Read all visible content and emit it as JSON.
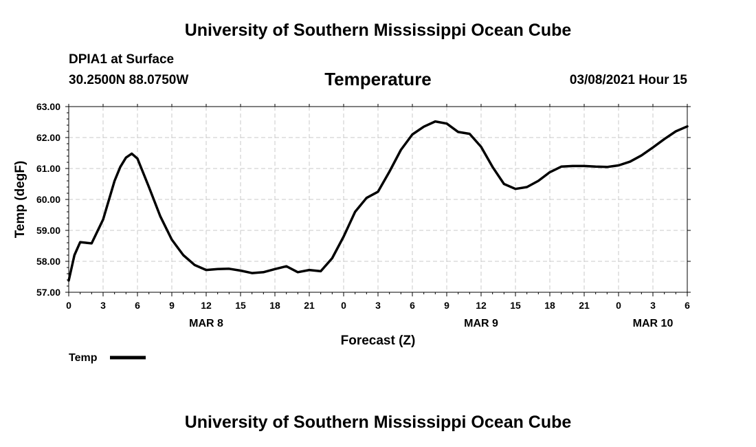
{
  "header": {
    "title": "University of Southern Mississippi Ocean Cube",
    "station": "DPIA1 at Surface",
    "location": "30.2500N 88.0750W",
    "chart_title": "Temperature",
    "datetime": "03/08/2021 Hour 15"
  },
  "footer": {
    "title": "University of Southern Mississippi Ocean Cube"
  },
  "chart_data": {
    "type": "line",
    "title": "Temperature",
    "xlabel": "Forecast (Z)",
    "ylabel": "Temp (degF)",
    "ylim": [
      57.0,
      63.0
    ],
    "xlim": [
      0,
      54
    ],
    "grid": true,
    "legend_position": "bottom-left",
    "y_ticks": [
      "57.00",
      "58.00",
      "59.00",
      "60.00",
      "61.00",
      "62.00",
      "63.00"
    ],
    "x_ticks": [
      "0",
      "3",
      "6",
      "9",
      "12",
      "15",
      "18",
      "21",
      "0",
      "3",
      "6",
      "9",
      "12",
      "15",
      "18",
      "21",
      "0",
      "3",
      "6"
    ],
    "date_labels": [
      {
        "label": "MAR 8",
        "at_hour": 12
      },
      {
        "label": "MAR 9",
        "at_hour": 36
      },
      {
        "label": "MAR 10",
        "at_hour": 51
      }
    ],
    "series": [
      {
        "name": "Temp",
        "color": "#000000",
        "x": [
          0,
          0.5,
          1,
          1.5,
          2,
          3,
          4,
          4.5,
          5,
          5.5,
          6,
          7,
          8,
          9,
          10,
          11,
          12,
          13,
          14,
          15,
          16,
          17,
          18,
          19,
          20,
          21,
          22,
          23,
          24,
          25,
          26,
          27,
          28,
          29,
          30,
          31,
          32,
          33,
          34,
          35,
          36,
          37,
          38,
          39,
          40,
          41,
          42,
          43,
          44,
          45,
          46,
          47,
          48,
          49,
          50,
          51,
          52,
          53,
          54
        ],
        "values": [
          57.38,
          58.2,
          58.62,
          58.6,
          58.58,
          59.35,
          60.6,
          61.05,
          61.35,
          61.48,
          61.32,
          60.4,
          59.45,
          58.7,
          58.2,
          57.88,
          57.72,
          57.75,
          57.76,
          57.7,
          57.62,
          57.65,
          57.75,
          57.84,
          57.65,
          57.72,
          57.68,
          58.1,
          58.8,
          59.6,
          60.05,
          60.25,
          60.9,
          61.6,
          62.1,
          62.35,
          62.52,
          62.45,
          62.18,
          62.12,
          61.7,
          61.05,
          60.5,
          60.34,
          60.4,
          60.6,
          60.88,
          61.06,
          61.08,
          61.08,
          61.06,
          61.05,
          61.1,
          61.22,
          61.42,
          61.68,
          61.95,
          62.2,
          62.36
        ]
      }
    ]
  }
}
